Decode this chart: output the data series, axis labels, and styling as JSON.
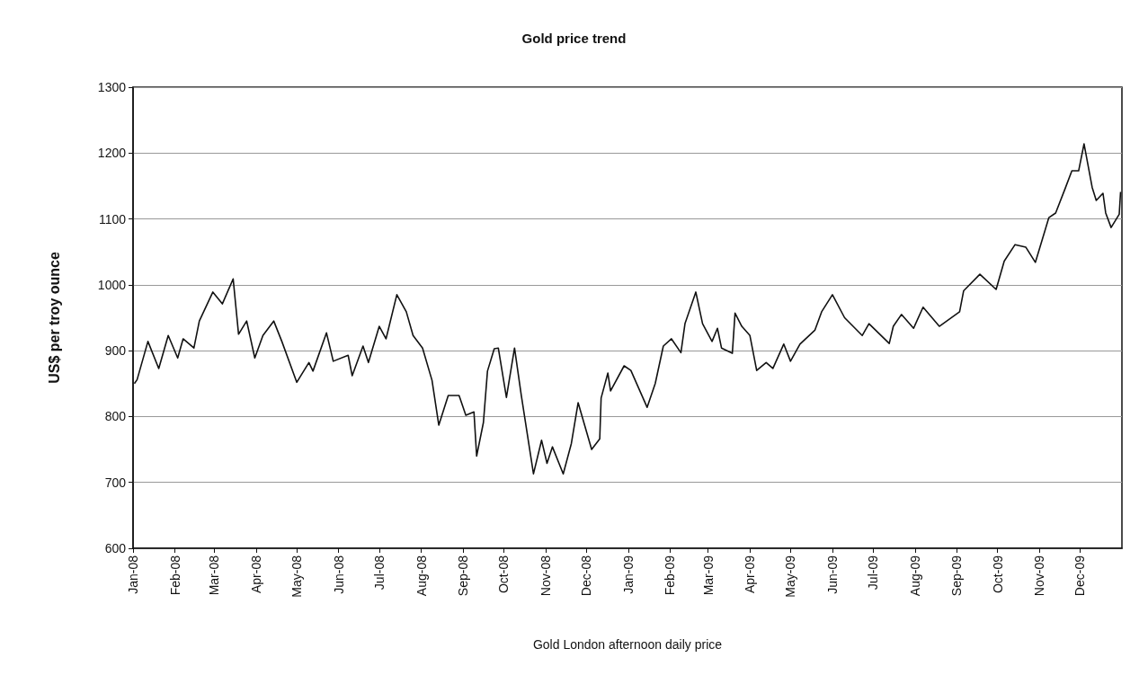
{
  "chart_data": {
    "type": "line",
    "title": "Gold price trend",
    "xlabel": "Gold London afternoon daily price",
    "ylabel": "US$ per troy ounce",
    "x": [
      "2008-01-02",
      "2008-01-04",
      "2008-01-12",
      "2008-01-20",
      "2008-01-27",
      "2008-02-03",
      "2008-02-07",
      "2008-02-15",
      "2008-02-19",
      "2008-02-29",
      "2008-03-07",
      "2008-03-15",
      "2008-03-19",
      "2008-03-25",
      "2008-03-31",
      "2008-04-06",
      "2008-04-14",
      "2008-04-20",
      "2008-05-01",
      "2008-05-10",
      "2008-05-13",
      "2008-05-23",
      "2008-05-28",
      "2008-06-08",
      "2008-06-11",
      "2008-06-19",
      "2008-06-23",
      "2008-07-01",
      "2008-07-06",
      "2008-07-14",
      "2008-07-21",
      "2008-07-26",
      "2008-08-02",
      "2008-08-09",
      "2008-08-14",
      "2008-08-21",
      "2008-08-29",
      "2008-09-03",
      "2008-09-09",
      "2008-09-11",
      "2008-09-16",
      "2008-09-19",
      "2008-09-24",
      "2008-09-27",
      "2008-10-03",
      "2008-10-09",
      "2008-10-14",
      "2008-10-23",
      "2008-10-29",
      "2008-11-02",
      "2008-11-06",
      "2008-11-14",
      "2008-11-20",
      "2008-11-25",
      "2008-12-05",
      "2008-12-11",
      "2008-12-12",
      "2008-12-17",
      "2008-12-19",
      "2008-12-29",
      "2009-01-03",
      "2009-01-15",
      "2009-01-21",
      "2009-01-27",
      "2009-02-02",
      "2009-02-09",
      "2009-02-12",
      "2009-02-20",
      "2009-02-25",
      "2009-03-04",
      "2009-03-08",
      "2009-03-11",
      "2009-03-19",
      "2009-03-21",
      "2009-03-26",
      "2009-04-01",
      "2009-04-06",
      "2009-04-13",
      "2009-04-18",
      "2009-04-26",
      "2009-05-01",
      "2009-05-08",
      "2009-05-19",
      "2009-05-24",
      "2009-06-01",
      "2009-06-10",
      "2009-06-23",
      "2009-06-28",
      "2009-07-13",
      "2009-07-16",
      "2009-07-22",
      "2009-07-31",
      "2009-08-07",
      "2009-08-19",
      "2009-09-03",
      "2009-09-06",
      "2009-09-18",
      "2009-09-30",
      "2009-10-06",
      "2009-10-14",
      "2009-10-22",
      "2009-10-29",
      "2009-11-08",
      "2009-11-13",
      "2009-11-20",
      "2009-11-25",
      "2009-11-30",
      "2009-12-04",
      "2009-12-10",
      "2009-12-13",
      "2009-12-18",
      "2009-12-20",
      "2009-12-24",
      "2009-12-30",
      "2009-12-31"
    ],
    "series": [
      {
        "color": "#111111",
        "values": [
          850,
          856,
          914,
          873,
          923,
          889,
          918,
          904,
          945,
          989,
          971,
          1009,
          925,
          945,
          889,
          923,
          945,
          914,
          852,
          882,
          869,
          927,
          884,
          893,
          862,
          907,
          882,
          937,
          918,
          985,
          959,
          923,
          904,
          855,
          787,
          832,
          832,
          802,
          807,
          740,
          791,
          869,
          903,
          904,
          829,
          904,
          832,
          713,
          764,
          729,
          754,
          713,
          759,
          821,
          750,
          766,
          828,
          866,
          839,
          877,
          870,
          814,
          850,
          907,
          918,
          897,
          941,
          989,
          941,
          914,
          934,
          904,
          896,
          957,
          937,
          923,
          870,
          882,
          873,
          910,
          884,
          910,
          931,
          959,
          985,
          950,
          923,
          941,
          911,
          937,
          955,
          934,
          966,
          937,
          959,
          991,
          1016,
          993,
          1036,
          1061,
          1057,
          1034,
          1102,
          1109,
          1146,
          1173,
          1173,
          1214,
          1148,
          1128,
          1139,
          1109,
          1087,
          1107,
          1141
        ]
      }
    ],
    "xlim": [
      "2008-01-01",
      "2010-01-01"
    ],
    "xticks": [
      {
        "value": "2008-01-01",
        "label": "Jan-08"
      },
      {
        "value": "2008-02-01",
        "label": "Feb-08"
      },
      {
        "value": "2008-03-01",
        "label": "Mar-08"
      },
      {
        "value": "2008-04-01",
        "label": "Apr-08"
      },
      {
        "value": "2008-05-01",
        "label": "May-08"
      },
      {
        "value": "2008-06-01",
        "label": "Jun-08"
      },
      {
        "value": "2008-07-01",
        "label": "Jul-08"
      },
      {
        "value": "2008-08-01",
        "label": "Aug-08"
      },
      {
        "value": "2008-09-01",
        "label": "Sep-08"
      },
      {
        "value": "2008-10-01",
        "label": "Oct-08"
      },
      {
        "value": "2008-11-01",
        "label": "Nov-08"
      },
      {
        "value": "2008-12-01",
        "label": "Dec-08"
      },
      {
        "value": "2009-01-01",
        "label": "Jan-09"
      },
      {
        "value": "2009-02-01",
        "label": "Feb-09"
      },
      {
        "value": "2009-03-01",
        "label": "Mar-09"
      },
      {
        "value": "2009-04-01",
        "label": "Apr-09"
      },
      {
        "value": "2009-05-01",
        "label": "May-09"
      },
      {
        "value": "2009-06-01",
        "label": "Jun-09"
      },
      {
        "value": "2009-07-01",
        "label": "Jul-09"
      },
      {
        "value": "2009-08-01",
        "label": "Aug-09"
      },
      {
        "value": "2009-09-01",
        "label": "Sep-09"
      },
      {
        "value": "2009-10-01",
        "label": "Oct-09"
      },
      {
        "value": "2009-11-01",
        "label": "Nov-09"
      },
      {
        "value": "2009-12-01",
        "label": "Dec-09"
      }
    ],
    "ylim": [
      600,
      1300
    ],
    "yticks": [
      600,
      700,
      800,
      900,
      1000,
      1100,
      1200,
      1300
    ],
    "grid": "y",
    "marker": "none",
    "line_style": "solid"
  }
}
